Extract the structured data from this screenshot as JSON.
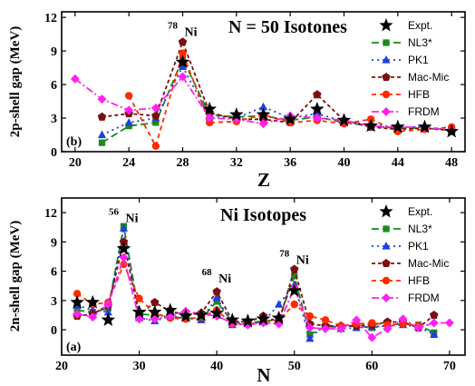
{
  "chart_data": [
    {
      "type": "line",
      "panel_label": "(b)",
      "title": "N = 50 Isotones",
      "xlabel": "Z",
      "ylabel": "2p-shell gap (MeV)",
      "xlim": [
        19,
        49
      ],
      "ylim": [
        0,
        12.5
      ],
      "xticks": [
        "20",
        "24",
        "28",
        "32",
        "36",
        "40",
        "44",
        "48"
      ],
      "yticks": [
        "0",
        "3",
        "6",
        "9",
        "12"
      ],
      "annotations": [
        {
          "sup": "78",
          "text": "Ni",
          "x": 28,
          "y": 11.0
        }
      ],
      "legend_position": "top-right",
      "series": [
        {
          "name": "Expt.",
          "color": "#000000",
          "marker": "star",
          "dash": "none",
          "x": [
            28,
            30,
            32,
            34,
            36,
            38,
            40,
            42,
            44,
            46,
            48
          ],
          "y": [
            8.0,
            3.8,
            3.3,
            3.3,
            2.9,
            3.8,
            2.8,
            2.3,
            2.2,
            2.2,
            1.8
          ]
        },
        {
          "name": "NL3*",
          "color": "#1a8a1a",
          "marker": "square",
          "dash": "8,4",
          "x": [
            22,
            24,
            26,
            28,
            30,
            32,
            34,
            36,
            38,
            40,
            42,
            44,
            46,
            48
          ],
          "y": [
            0.8,
            2.3,
            2.6,
            8.3,
            3.3,
            3.1,
            3.2,
            2.8,
            3.1,
            2.6,
            2.3,
            2.1,
            2.1,
            1.9
          ]
        },
        {
          "name": "PK1",
          "color": "#1f3fe0",
          "marker": "triangle",
          "dash": "2,4",
          "x": [
            22,
            24,
            26,
            28,
            30,
            32,
            34,
            36,
            38,
            40,
            42,
            44,
            46,
            48
          ],
          "y": [
            1.5,
            2.6,
            3.0,
            7.6,
            3.1,
            3.0,
            4.0,
            3.0,
            3.4,
            2.7,
            2.4,
            2.2,
            2.2,
            1.9
          ]
        },
        {
          "name": "Mac-Mic",
          "color": "#7a1010",
          "marker": "pentagon",
          "dash": "4,3",
          "x": [
            22,
            24,
            26,
            28,
            30,
            32,
            34,
            36,
            38,
            40,
            42,
            44,
            46,
            48
          ],
          "y": [
            3.1,
            3.4,
            3.2,
            9.8,
            3.5,
            2.9,
            2.9,
            2.6,
            5.1,
            2.8,
            2.2,
            2.0,
            2.1,
            1.9
          ]
        },
        {
          "name": "HFB",
          "color": "#ff2a00",
          "marker": "circle",
          "dash": "5,4",
          "x": [
            24,
            26,
            28,
            30,
            32,
            34,
            36,
            38,
            40,
            42,
            44,
            46,
            48
          ],
          "y": [
            5.0,
            0.5,
            8.8,
            2.6,
            2.7,
            3.3,
            2.6,
            2.8,
            2.5,
            2.9,
            1.8,
            2.0,
            2.2
          ]
        },
        {
          "name": "FRDM",
          "color": "#ff22ee",
          "marker": "diamond",
          "dash": "8,3,2,3",
          "x": [
            20,
            22,
            24,
            26,
            28,
            30,
            32,
            34,
            36,
            38,
            40,
            42,
            44,
            46,
            48
          ],
          "y": [
            6.5,
            4.7,
            3.7,
            3.9,
            6.7,
            3.0,
            2.9,
            2.5,
            3.2,
            3.0,
            2.8,
            2.3,
            2.2,
            2.2,
            1.9
          ]
        }
      ]
    },
    {
      "type": "line",
      "panel_label": "(a)",
      "title": "Ni Isotopes",
      "xlabel": "N",
      "ylabel": "2n-shell gap (MeV)",
      "xlim": [
        20,
        72
      ],
      "ylim": [
        -2.6,
        13.5
      ],
      "xticks": [
        "20",
        "30",
        "40",
        "50",
        "60",
        "70"
      ],
      "yticks": [
        "0",
        "3",
        "6",
        "9",
        "12"
      ],
      "annotations": [
        {
          "sup": "56",
          "text": "Ni",
          "x": 28,
          "y": 11.8
        },
        {
          "sup": "68",
          "text": "Ni",
          "x": 40,
          "y": 5.6
        },
        {
          "sup": "78",
          "text": "Ni",
          "x": 50,
          "y": 7.5
        }
      ],
      "legend_position": "top-right",
      "series": [
        {
          "name": "Expt.",
          "color": "#000000",
          "marker": "star",
          "dash": "none",
          "x": [
            22,
            24,
            26,
            28,
            30,
            32,
            34,
            36,
            38,
            40,
            42,
            44,
            46,
            48,
            50
          ],
          "y": [
            2.8,
            2.8,
            1.0,
            8.3,
            1.8,
            1.8,
            2.0,
            1.4,
            1.5,
            1.7,
            1.0,
            0.9,
            1.1,
            1.2,
            4.0
          ]
        },
        {
          "name": "NL3*",
          "color": "#1a8a1a",
          "marker": "square",
          "dash": "8,4",
          "x": [
            22,
            24,
            26,
            28,
            30,
            32,
            34,
            36,
            38,
            40,
            42,
            44,
            46,
            48,
            50,
            52,
            54,
            56,
            58,
            60,
            62,
            64,
            66,
            68
          ],
          "y": [
            2.0,
            1.8,
            2.2,
            10.6,
            1.6,
            1.5,
            1.3,
            1.2,
            1.1,
            2.9,
            0.8,
            0.7,
            0.9,
            1.0,
            5.5,
            -0.5,
            0.3,
            0.3,
            0.4,
            0.2,
            0.5,
            0.6,
            0.5,
            -0.3
          ]
        },
        {
          "name": "PK1",
          "color": "#1f3fe0",
          "marker": "triangle",
          "dash": "2,4",
          "x": [
            22,
            24,
            26,
            28,
            30,
            32,
            34,
            36,
            38,
            40,
            42,
            44,
            46,
            48,
            50,
            52,
            54,
            56,
            58,
            60,
            62,
            64,
            66,
            68
          ],
          "y": [
            2.5,
            2.0,
            1.8,
            10.4,
            1.2,
            0.9,
            1.4,
            1.2,
            1.0,
            3.3,
            0.5,
            0.6,
            0.8,
            2.6,
            4.6,
            -0.9,
            0.6,
            0.1,
            0.2,
            0.3,
            0.4,
            0.5,
            0.3,
            -0.5
          ]
        },
        {
          "name": "Mac-Mic",
          "color": "#7a1010",
          "marker": "pentagon",
          "dash": "4,3",
          "x": [
            22,
            24,
            26,
            28,
            30,
            32,
            34,
            36,
            38,
            40,
            42,
            44,
            46,
            48,
            50,
            52,
            54,
            56,
            58,
            60,
            62,
            64,
            66,
            68
          ],
          "y": [
            1.4,
            1.6,
            2.5,
            9.0,
            1.5,
            2.8,
            1.9,
            1.5,
            1.7,
            3.9,
            0.9,
            0.8,
            1.4,
            0.8,
            6.2,
            0.6,
            0.4,
            0.4,
            0.4,
            0.5,
            0.8,
            0.8,
            0.2,
            1.5
          ]
        },
        {
          "name": "HFB",
          "color": "#ff2a00",
          "marker": "circle",
          "dash": "5,4",
          "x": [
            22,
            24,
            26,
            28,
            30,
            32,
            34,
            36,
            38,
            40,
            42,
            44,
            46,
            48,
            50,
            52,
            54,
            56,
            58,
            60,
            62,
            64,
            66
          ],
          "y": [
            3.7,
            2.6,
            2.8,
            6.7,
            3.2,
            1.7,
            1.2,
            1.1,
            1.3,
            2.0,
            0.6,
            0.6,
            0.8,
            1.0,
            2.6,
            1.4,
            1.0,
            0.4,
            0.6,
            0.7,
            0.5,
            0.6,
            0.4
          ]
        },
        {
          "name": "FRDM",
          "color": "#ff22ee",
          "marker": "diamond",
          "dash": "8,3,2,3",
          "x": [
            22,
            24,
            26,
            28,
            30,
            32,
            34,
            36,
            38,
            40,
            42,
            44,
            46,
            48,
            50,
            52,
            54,
            56,
            58,
            60,
            62,
            64,
            66,
            68,
            70
          ],
          "y": [
            1.6,
            1.3,
            2.6,
            7.4,
            1.1,
            1.1,
            1.4,
            1.9,
            1.6,
            1.4,
            0.7,
            0.5,
            0.7,
            0.6,
            4.3,
            0.2,
            0.1,
            0.1,
            1.0,
            -0.8,
            0.1,
            1.1,
            0.2,
            0.7,
            0.7
          ]
        }
      ]
    }
  ]
}
